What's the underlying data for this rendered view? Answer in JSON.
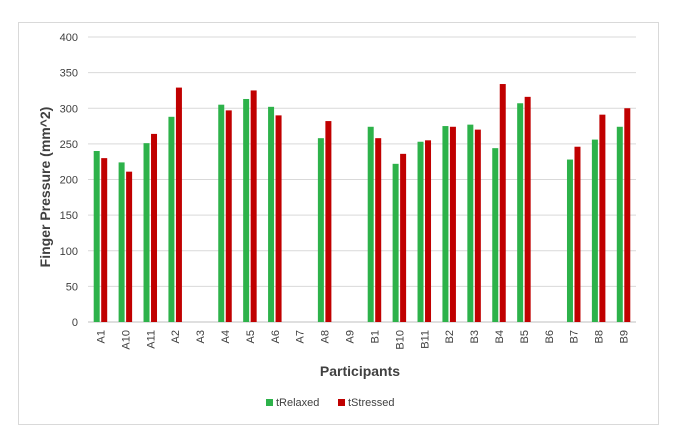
{
  "chart_data": {
    "type": "bar",
    "title": "",
    "xlabel": "Participants",
    "ylabel": "Finger Pressure (mm^2)",
    "ylim": [
      0,
      400
    ],
    "yticks": [
      0,
      50,
      100,
      150,
      200,
      250,
      300,
      350,
      400
    ],
    "grid": true,
    "legend_position": "bottom",
    "categories": [
      "A1",
      "A10",
      "A11",
      "A2",
      "A3",
      "A4",
      "A5",
      "A6",
      "A7",
      "A8",
      "A9",
      "B1",
      "B10",
      "B11",
      "B2",
      "B3",
      "B4",
      "B5",
      "B6",
      "B7",
      "B8",
      "B9"
    ],
    "series": [
      {
        "name": "tRelaxed",
        "color": "#2db24a",
        "values": [
          240,
          224,
          251,
          288,
          null,
          305,
          313,
          302,
          null,
          258,
          null,
          274,
          222,
          253,
          275,
          277,
          244,
          307,
          null,
          228,
          256,
          274
        ]
      },
      {
        "name": "tStressed",
        "color": "#c00000",
        "values": [
          230,
          211,
          264,
          329,
          null,
          297,
          325,
          290,
          null,
          282,
          null,
          258,
          236,
          255,
          274,
          270,
          334,
          316,
          null,
          246,
          291,
          300
        ]
      }
    ]
  }
}
